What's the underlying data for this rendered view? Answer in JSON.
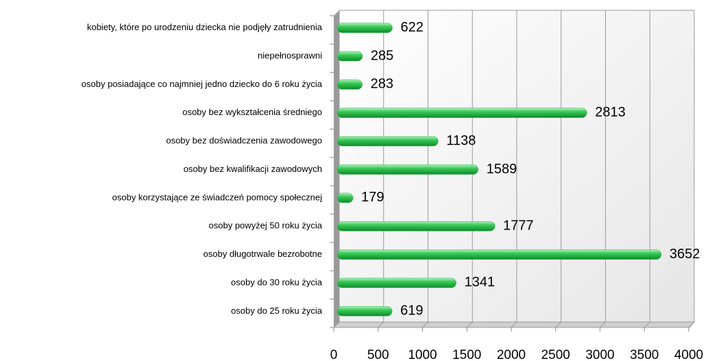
{
  "chart_data": {
    "type": "bar",
    "orientation": "horizontal",
    "categories": [
      "kobiety, które po urodzeniu dziecka nie podjęły zatrudnienia",
      "niepełnosprawni",
      "osoby posiadające co najmniej jedno dziecko do 6 roku życia",
      "osoby bez wykształcenia średniego",
      "osoby bez doświadczenia zawodowego",
      "osoby bez kwalifikacji zawodowych",
      "osoby korzystające ze świadczeń pomocy społecznej",
      "osoby powyżej 50 roku życia",
      "osoby długotrwale bezrobotne",
      "osoby do 30 roku życia",
      "osoby do 25 roku życia"
    ],
    "values": [
      622,
      285,
      283,
      2813,
      1138,
      1589,
      179,
      1777,
      3652,
      1341,
      619
    ],
    "color": "#1fb33f",
    "xlim": [
      0,
      4000
    ],
    "xticks": [
      0,
      500,
      1000,
      1500,
      2000,
      2500,
      3000,
      3500,
      4000
    ],
    "grid": true
  }
}
